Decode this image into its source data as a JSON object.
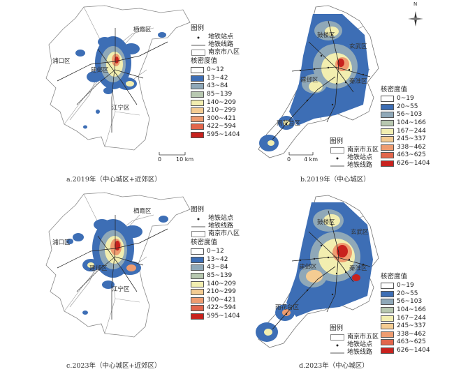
{
  "panels": [
    {
      "id": "a",
      "caption": "a.2019年（中心城区+近郊区）",
      "legend_title": "图例",
      "layers": [
        "地铁站点",
        "地铁线路",
        "南京市八区"
      ],
      "kd_title": "核密度值",
      "classes": [
        "0~12",
        "13~42",
        "43~84",
        "85~139",
        "140~209",
        "210~299",
        "300~421",
        "422~594",
        "595~1404"
      ],
      "places": [
        "栖霞区",
        "浦口区",
        "建邺区",
        "江宁区"
      ],
      "scale": [
        "0",
        "10 km"
      ]
    },
    {
      "id": "b",
      "caption": "b.2019年（中心城区）",
      "legend_title": "图例",
      "layers": [
        "南京市五区",
        "地铁站点",
        "地铁线路"
      ],
      "kd_title": "核密度值",
      "classes": [
        "0~19",
        "20~55",
        "56~103",
        "104~166",
        "167~244",
        "245~337",
        "338~462",
        "463~625",
        "626~1404"
      ],
      "places": [
        "鼓楼区",
        "玄武区",
        "建邺区",
        "秦淮区",
        "雨花台区"
      ],
      "scale": [
        "0",
        "4 km"
      ],
      "north": "N"
    },
    {
      "id": "c",
      "caption": "c.2023年（中心城区+近郊区）",
      "legend_title": "图例",
      "layers": [
        "地铁站点",
        "地铁线路",
        "南京市八区"
      ],
      "kd_title": "核密度值",
      "classes": [
        "0~12",
        "13~42",
        "43~84",
        "85~139",
        "140~209",
        "210~299",
        "300~421",
        "422~594",
        "595~1404"
      ],
      "places": [
        "栖霞区",
        "浦口区",
        "建邺区",
        "江宁区"
      ]
    },
    {
      "id": "d",
      "caption": "d.2023年（中心城区）",
      "legend_title": "图例",
      "layers": [
        "南京市五区",
        "地铁站点",
        "地铁线路"
      ],
      "kd_title": "核密度值",
      "classes": [
        "0~19",
        "20~55",
        "56~103",
        "104~166",
        "167~244",
        "245~337",
        "338~462",
        "463~625",
        "626~1404"
      ],
      "places": [
        "鼓楼区",
        "玄武区",
        "建邺区",
        "秦淮区",
        "雨花台区"
      ]
    }
  ],
  "colors": [
    "#ffffff",
    "#3d6eb5",
    "#8fa8b8",
    "#b8c8b0",
    "#f2eeb0",
    "#f4cc92",
    "#ee9c70",
    "#e2664c",
    "#c8221e"
  ]
}
